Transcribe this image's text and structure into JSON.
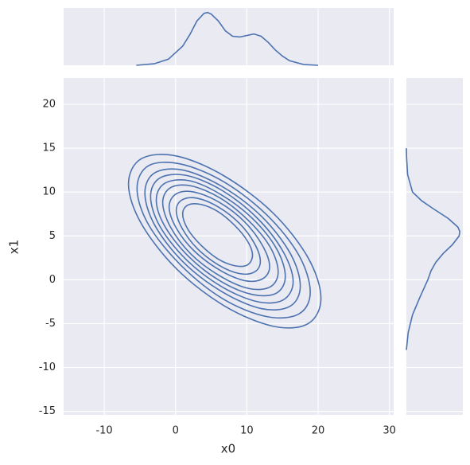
{
  "chart_data": [
    {
      "type": "contour",
      "xlabel": "x0",
      "ylabel": "x1",
      "color": "#4c72b0",
      "grid": true,
      "xlim": [
        -15.7,
        30.6
      ],
      "ylim": [
        -15.4,
        23.0
      ],
      "xticks": [
        -10,
        0,
        10,
        20,
        30
      ],
      "yticks": [
        -15,
        -10,
        -5,
        0,
        5,
        10,
        15,
        20
      ],
      "contours": [
        {
          "x": [
            10.8,
            10.1,
            8.3,
            5.9,
            3.5,
            1.7,
            1.0,
            1.7,
            3.5,
            5.9,
            8.3,
            10.1
          ],
          "y": [
            2.8,
            4.4,
            6.2,
            7.8,
            8.6,
            8.5,
            7.5,
            5.8,
            4.0,
            2.4,
            1.6,
            1.7
          ]
        },
        {
          "x": [
            11.9,
            11.1,
            9.0,
            6.0,
            3.0,
            0.9,
            0.1,
            0.9,
            3.0,
            6.0,
            9.0,
            11.1
          ],
          "y": [
            2.1,
            4.1,
            6.4,
            8.3,
            9.3,
            9.1,
            7.9,
            5.9,
            3.6,
            1.7,
            0.7,
            0.9
          ]
        },
        {
          "x": [
            13.2,
            12.2,
            9.7,
            6.2,
            2.6,
            0.1,
            -0.9,
            0.1,
            2.6,
            6.2,
            9.7,
            12.2
          ],
          "y": [
            1.5,
            3.9,
            6.6,
            8.8,
            10.0,
            9.8,
            8.3,
            5.9,
            3.3,
            1.1,
            -0.1,
            0.1
          ]
        },
        {
          "x": [
            14.4,
            13.3,
            10.3,
            6.3,
            2.2,
            -0.7,
            -1.8,
            -0.7,
            2.2,
            6.3,
            10.3,
            13.3
          ],
          "y": [
            0.9,
            3.7,
            6.7,
            9.3,
            10.7,
            10.5,
            8.8,
            6.0,
            2.9,
            0.4,
            -1.0,
            -0.8
          ]
        },
        {
          "x": [
            15.4,
            14.2,
            10.9,
            6.4,
            1.9,
            -1.5,
            -2.7,
            -1.5,
            1.9,
            6.4,
            10.9,
            14.2
          ],
          "y": [
            0.4,
            3.5,
            6.9,
            9.7,
            11.3,
            11.0,
            9.1,
            6.1,
            2.6,
            -0.2,
            -1.7,
            -1.5
          ]
        },
        {
          "x": [
            16.5,
            15.1,
            11.5,
            6.5,
            1.5,
            -2.2,
            -3.5,
            -2.2,
            1.5,
            6.5,
            11.5,
            15.1
          ],
          "y": [
            -0.2,
            3.2,
            7.0,
            10.2,
            11.9,
            11.6,
            9.5,
            6.1,
            2.3,
            -0.8,
            -2.5,
            -2.3
          ]
        },
        {
          "x": [
            17.5,
            16.1,
            12.1,
            6.6,
            1.1,
            -2.9,
            -4.3,
            -2.9,
            1.1,
            6.6,
            12.1,
            16.1
          ],
          "y": [
            -0.7,
            3.0,
            7.2,
            10.6,
            12.5,
            12.2,
            9.9,
            6.2,
            2.0,
            -1.4,
            -3.3,
            -3.0
          ]
        },
        {
          "x": [
            18.9,
            17.3,
            12.8,
            6.7,
            0.7,
            -3.8,
            -5.4,
            -3.8,
            0.7,
            6.7,
            12.8,
            17.3
          ],
          "y": [
            -1.4,
            2.8,
            7.4,
            11.2,
            13.2,
            13.0,
            10.4,
            6.3,
            1.7,
            -2.2,
            -4.2,
            -3.9
          ]
        },
        {
          "x": [
            20.4,
            18.6,
            13.7,
            6.9,
            0.2,
            -4.8,
            -6.6,
            -4.8,
            0.2,
            6.9,
            13.7,
            18.6
          ],
          "y": [
            -2.1,
            2.5,
            7.6,
            11.8,
            14.1,
            13.8,
            10.9,
            6.4,
            1.2,
            -3.0,
            -5.3,
            -5.0
          ]
        }
      ]
    },
    {
      "type": "kde",
      "color": "#4c72b0",
      "xlim": [
        -15.7,
        30.6
      ],
      "ylim": [
        0,
        0.075
      ],
      "x": [
        -5.5,
        -3,
        -1,
        1,
        2,
        3,
        4,
        4.5,
        5,
        6,
        7,
        8,
        9,
        10,
        11,
        12,
        13,
        14,
        15,
        16,
        18,
        20
      ],
      "values": [
        0,
        0.002,
        0.008,
        0.025,
        0.04,
        0.058,
        0.068,
        0.069,
        0.067,
        0.058,
        0.045,
        0.038,
        0.037,
        0.039,
        0.041,
        0.038,
        0.03,
        0.02,
        0.012,
        0.006,
        0.001,
        0
      ]
    },
    {
      "type": "kde-horizontal",
      "color": "#4c72b0",
      "xlim": [
        0,
        0.092
      ],
      "ylim": [
        -15.4,
        23.0
      ],
      "y": [
        -8,
        -6,
        -4,
        -2,
        0,
        1,
        2,
        3,
        4,
        5,
        5.5,
        6,
        7,
        8,
        9,
        10,
        12,
        14,
        15
      ],
      "values": [
        0,
        0.003,
        0.01,
        0.022,
        0.035,
        0.04,
        0.048,
        0.06,
        0.075,
        0.086,
        0.087,
        0.084,
        0.068,
        0.046,
        0.025,
        0.01,
        0.002,
        0.0003,
        0
      ]
    }
  ]
}
